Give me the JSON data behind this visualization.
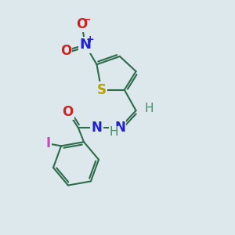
{
  "background_color": "#dce8ec",
  "bond_color": "#2d6b4a",
  "bond_width": 1.5,
  "atoms": {
    "S": {
      "color": "#b8a000",
      "fontsize": 12
    },
    "N": {
      "color": "#2222cc",
      "fontsize": 12
    },
    "O": {
      "color": "#cc2222",
      "fontsize": 12
    },
    "H": {
      "color": "#4a8a6a",
      "fontsize": 11
    },
    "I": {
      "color": "#cc44bb",
      "fontsize": 12
    }
  },
  "figsize": [
    3.0,
    3.0
  ],
  "dpi": 100
}
